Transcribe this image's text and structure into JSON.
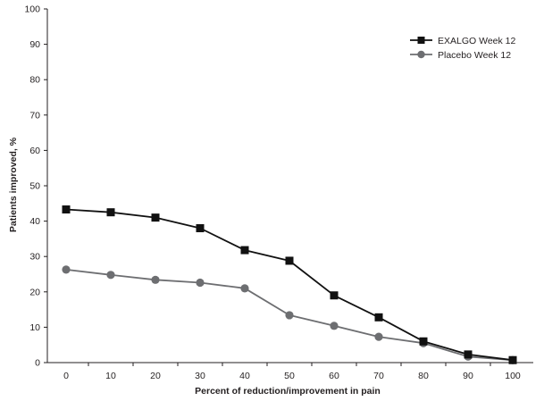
{
  "chart_data": {
    "type": "line",
    "title": "",
    "xlabel": "Percent of reduction/improvement in pain",
    "ylabel": "Patients improved, %",
    "x": [
      0,
      10,
      20,
      30,
      40,
      50,
      60,
      70,
      80,
      90,
      100
    ],
    "xlim": [
      0,
      100
    ],
    "ylim": [
      0,
      100
    ],
    "x_ticks": [
      "0",
      "10",
      "20",
      "30",
      "40",
      "50",
      "60",
      "70",
      "80",
      "90",
      "100"
    ],
    "y_ticks": [
      "0",
      "10",
      "20",
      "30",
      "40",
      "50",
      "60",
      "70",
      "80",
      "90",
      "100"
    ],
    "grid": false,
    "legend_position": "top-right",
    "series": [
      {
        "name": "EXALGO Week 12",
        "marker": "square",
        "color": "#111111",
        "values": [
          43.3,
          42.5,
          41.0,
          38.0,
          31.8,
          28.8,
          19.0,
          12.8,
          6.0,
          2.3,
          0.7
        ]
      },
      {
        "name": "Placebo Week 12",
        "marker": "circle",
        "color": "#6d6e71",
        "values": [
          26.3,
          24.8,
          23.4,
          22.6,
          21.0,
          13.4,
          10.4,
          7.3,
          5.5,
          1.7,
          0.7
        ]
      }
    ]
  }
}
